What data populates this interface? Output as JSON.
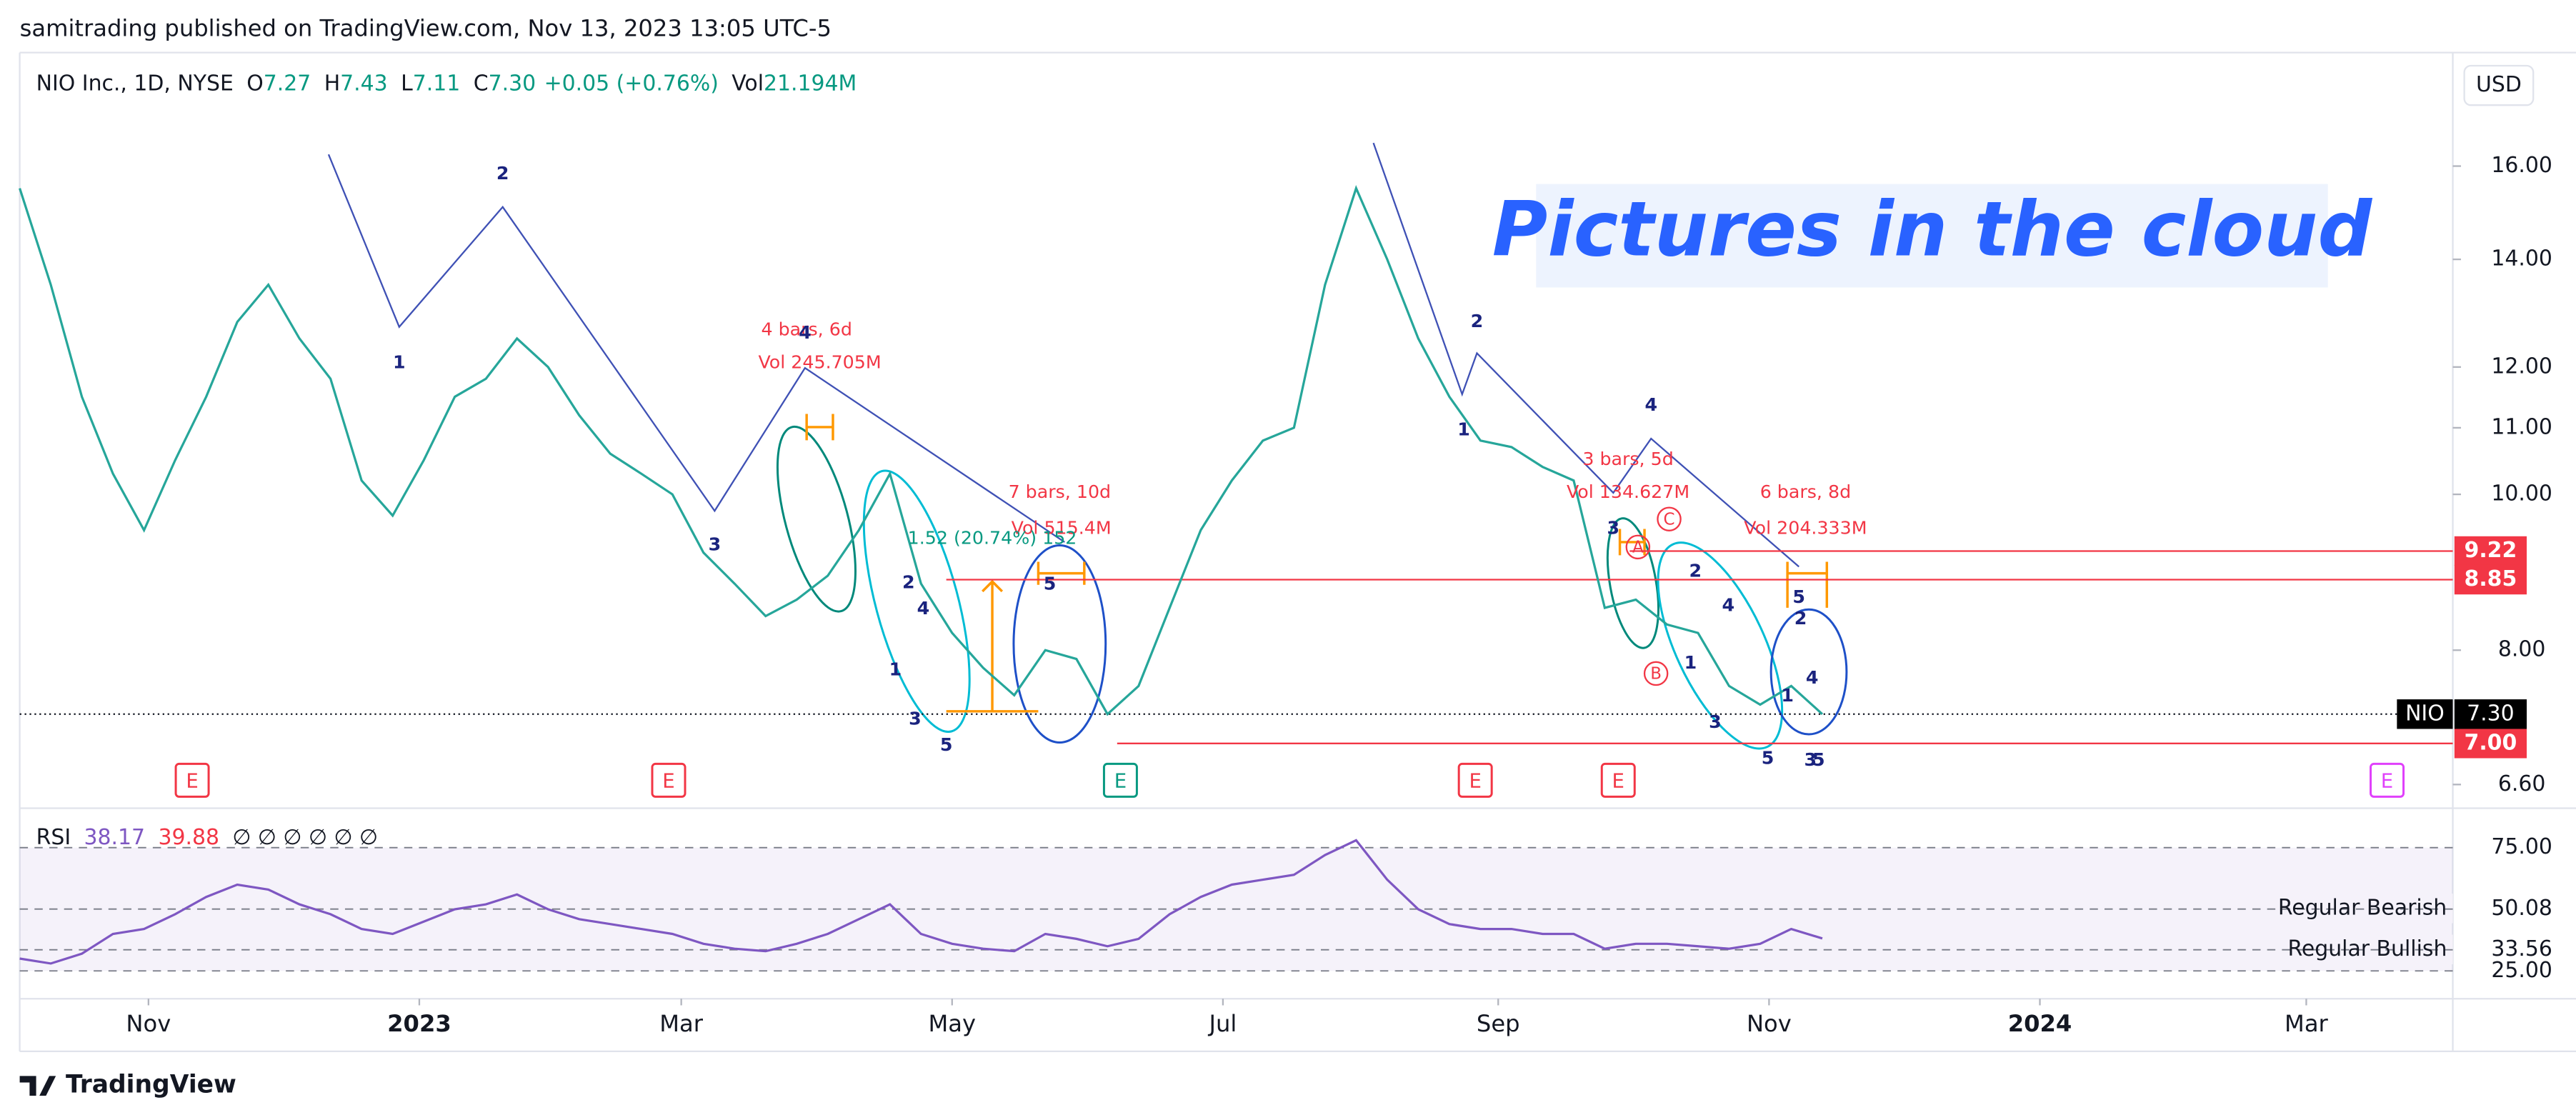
{
  "header": {
    "publisher": "samitrading published on TradingView.com, Nov 13, 2023 13:05 UTC-5",
    "symbol": "NIO Inc., 1D, NYSE",
    "ohlc": [
      {
        "label": "O",
        "value": "7.27"
      },
      {
        "label": "H",
        "value": "7.43"
      },
      {
        "label": "L",
        "value": "7.11"
      },
      {
        "label": "C",
        "value": "7.30"
      }
    ],
    "change": "+0.05 (+0.76%)",
    "vol_label": "Vol",
    "vol": "21.194M",
    "currency": "USD"
  },
  "chart_data": [
    {
      "type": "line",
      "x": [
        "2022-10-03",
        "2022-10-10",
        "2022-10-17",
        "2022-10-24",
        "2022-10-31",
        "2022-11-07",
        "2022-11-14",
        "2022-11-21",
        "2022-11-28",
        "2022-12-05",
        "2022-12-12",
        "2022-12-19",
        "2022-12-26",
        "2023-01-02",
        "2023-01-09",
        "2023-01-16",
        "2023-01-23",
        "2023-01-30",
        "2023-02-06",
        "2023-02-13",
        "2023-02-20",
        "2023-02-27",
        "2023-03-06",
        "2023-03-13",
        "2023-03-20",
        "2023-03-27",
        "2023-04-03",
        "2023-04-10",
        "2023-04-17",
        "2023-04-24",
        "2023-05-01",
        "2023-05-08",
        "2023-05-15",
        "2023-05-22",
        "2023-05-29",
        "2023-06-05",
        "2023-06-12",
        "2023-06-19",
        "2023-06-26",
        "2023-07-03",
        "2023-07-10",
        "2023-07-17",
        "2023-07-24",
        "2023-07-31",
        "2023-08-07",
        "2023-08-14",
        "2023-08-21",
        "2023-08-28",
        "2023-09-04",
        "2023-09-11",
        "2023-09-18",
        "2023-09-25",
        "2023-10-02",
        "2023-10-09",
        "2023-10-16",
        "2023-10-23",
        "2023-10-30",
        "2023-11-06",
        "2023-11-13"
      ],
      "series": [
        {
          "name": "NIO",
          "color": "#26a69a",
          "values": [
            15.5,
            13.5,
            11.5,
            10.3,
            9.5,
            10.5,
            11.5,
            12.8,
            13.5,
            12.5,
            11.8,
            10.2,
            9.7,
            10.5,
            11.5,
            11.8,
            12.5,
            12.0,
            11.2,
            10.6,
            10.3,
            10.0,
            9.2,
            8.8,
            8.4,
            8.6,
            8.9,
            9.5,
            10.3,
            8.8,
            8.2,
            7.8,
            7.5,
            8.0,
            7.9,
            7.3,
            7.6,
            8.5,
            9.5,
            10.2,
            10.8,
            11.0,
            13.5,
            15.5,
            14.0,
            12.5,
            11.5,
            10.8,
            10.7,
            10.4,
            10.2,
            8.5,
            8.6,
            8.3,
            8.2,
            7.6,
            7.4,
            7.6,
            7.3
          ]
        }
      ],
      "xlim": [
        "2022-10-03",
        "2024-04-03"
      ],
      "ylim": [
        6.41,
        18.78
      ],
      "log_scale": true,
      "yticks": [
        {
          "value": 16,
          "label": "16.00"
        },
        {
          "value": 14,
          "label": "14.00"
        },
        {
          "value": 12,
          "label": "12.00"
        },
        {
          "value": 11,
          "label": "11.00"
        },
        {
          "value": 10,
          "label": "10.00"
        },
        {
          "value": 8,
          "label": "8.00"
        },
        {
          "value": 6.6,
          "label": "6.60"
        }
      ],
      "xticks": [
        {
          "value": "2022-11",
          "label": "Nov"
        },
        {
          "value": "2023-01",
          "label": "2023"
        },
        {
          "value": "2023-03",
          "label": "Mar"
        },
        {
          "value": "2023-05",
          "label": "May"
        },
        {
          "value": "2023-07",
          "label": "Jul"
        },
        {
          "value": "2023-09",
          "label": "Sep"
        },
        {
          "value": "2023-11",
          "label": "Nov"
        },
        {
          "value": "2024-01",
          "label": "2024"
        },
        {
          "value": "2024-03",
          "label": "Mar"
        }
      ],
      "levels": [
        {
          "value": 9.22,
          "label": "9.22",
          "color": "#f23645"
        },
        {
          "value": 8.85,
          "label": "8.85",
          "color": "#f23645"
        },
        {
          "value": 7.0,
          "label": "7.00",
          "color": "#f23645"
        }
      ],
      "last": {
        "name": "NIO",
        "value": 7.3,
        "label": "7.30"
      },
      "watermark": "Pictures in the cloud",
      "annotations": [
        {
          "text": "4 bars, 6d",
          "color": "#f23645"
        },
        {
          "text": "Vol 245.705M",
          "color": "#f23645"
        },
        {
          "text": "7 bars, 10d",
          "color": "#f23645"
        },
        {
          "text": "Vol 515.4M",
          "color": "#f23645"
        },
        {
          "text": "1.52 (20.74%) 152",
          "color": "#089981"
        },
        {
          "text": "3 bars, 5d",
          "color": "#f23645"
        },
        {
          "text": "Vol 134.627M",
          "color": "#f23645"
        },
        {
          "text": "6 bars, 8d",
          "color": "#f23645"
        },
        {
          "text": "Vol 204.333M",
          "color": "#f23645"
        }
      ],
      "wave_labels": [
        "2",
        "1",
        "3",
        "4",
        "2",
        "4",
        "1",
        "3",
        "5",
        "5",
        "2",
        "1",
        "4",
        "3",
        "2",
        "4",
        "1",
        "3",
        "5",
        "5",
        "2",
        "4",
        "1",
        "3",
        "5"
      ],
      "abc_labels": [
        "A",
        "C",
        "B"
      ],
      "earnings": [
        {
          "label": "E",
          "color": "#f23645"
        },
        {
          "label": "E",
          "color": "#f23645"
        },
        {
          "label": "E",
          "color": "#089981"
        },
        {
          "label": "E",
          "color": "#f23645"
        },
        {
          "label": "E",
          "color": "#f23645"
        },
        {
          "label": "E",
          "color": "#e040fb"
        }
      ]
    },
    {
      "type": "line",
      "title": "RSI",
      "value": "38.17",
      "ma": "39.88",
      "placeholders": "∅ ∅ ∅ ∅ ∅ ∅",
      "series": [
        {
          "name": "RSI",
          "color": "#7e57c2",
          "values": [
            30,
            28,
            32,
            40,
            42,
            48,
            55,
            60,
            58,
            52,
            48,
            42,
            40,
            45,
            50,
            52,
            56,
            50,
            46,
            44,
            42,
            40,
            36,
            34,
            33,
            36,
            40,
            46,
            52,
            40,
            36,
            34,
            33,
            40,
            38,
            35,
            38,
            48,
            55,
            60,
            62,
            64,
            72,
            78,
            62,
            50,
            44,
            42,
            42,
            40,
            40,
            34,
            36,
            36,
            35,
            34,
            36,
            42,
            38.17
          ]
        }
      ],
      "ylim": [
        13.7,
        91
      ],
      "yticks": [
        {
          "value": 75,
          "label": "75.00"
        },
        {
          "value": 50.08,
          "label": "50.08"
        },
        {
          "value": 33.56,
          "label": "33.56"
        },
        {
          "value": 25,
          "label": "25.00"
        }
      ],
      "divergence": [
        "Regular Bearish",
        "Regular Bullish"
      ]
    }
  ],
  "footer": "TradingView"
}
